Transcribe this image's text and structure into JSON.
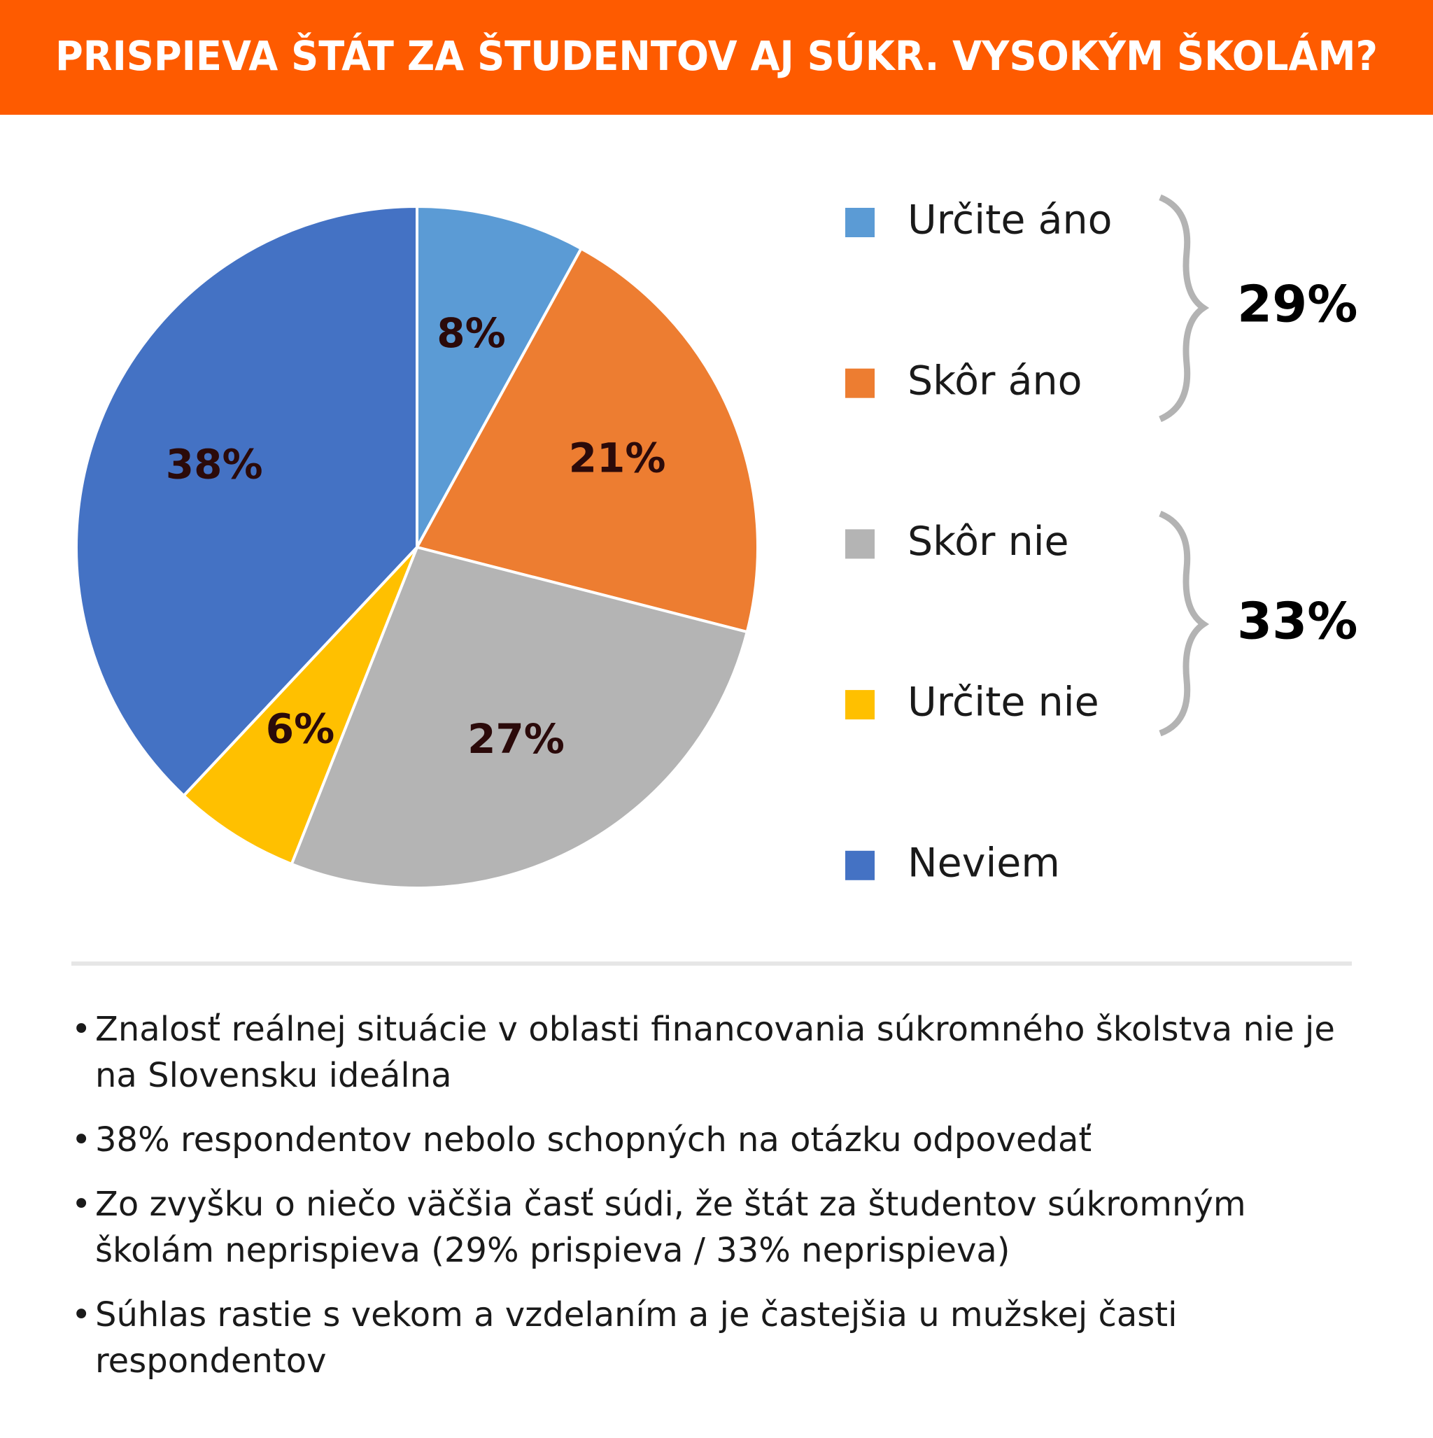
{
  "chart_data": {
    "type": "pie",
    "title": "PRISPIEVA ŠTÁT ZA ŠTUDENTOV AJ SÚKR. VYSOKÝM ŠKOLÁM?",
    "categories": [
      "Určite áno",
      "Skôr áno",
      "Skôr nie",
      "Určite nie",
      "Neviem"
    ],
    "values": [
      8,
      21,
      27,
      6,
      38
    ],
    "value_labels": [
      "8%",
      "21%",
      "27%",
      "6%",
      "38%"
    ],
    "colors": [
      "#5b9bd5",
      "#ed7d31",
      "#b4b4b4",
      "#ffc000",
      "#4472c4"
    ],
    "annotations": [
      "29%",
      "33%"
    ],
    "notes": [
      "Znalosť reálnej situácie v oblasti financovania súkromného školstva nie je na Slovensku ideálna",
      "38% respondentov nebolo schopných na otázku odpovedať",
      "Zo zvyšku o niečo väčšia časť súdi, že štát za študentov súkromným školám neprispieva (29% prispieva / 33% neprispieva)",
      "Súhlas rastie s vekom a vzdelaním a je častejšia u mužskej časti respondentov"
    ]
  }
}
